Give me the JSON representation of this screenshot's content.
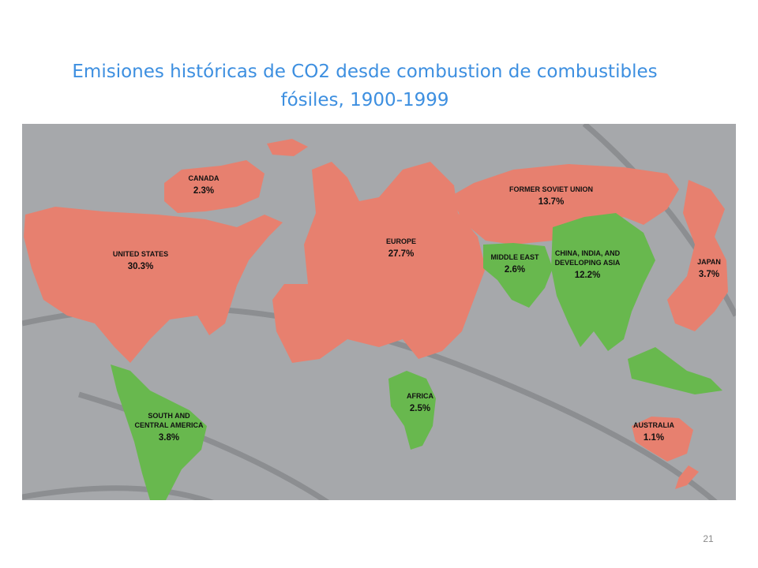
{
  "title": {
    "lines": [
      "Emisiones históricas de CO2 desde combustion de combustibles",
      "fósiles, 1900-1999"
    ]
  },
  "regions": [
    {
      "name": [
        "CANADA"
      ],
      "share": "2.3%"
    },
    {
      "name": [
        "UNITED STATES"
      ],
      "share": "30.3%"
    },
    {
      "name": [
        "EUROPE"
      ],
      "share": "27.7%"
    },
    {
      "name": [
        "FORMER SOVIET UNION"
      ],
      "share": "13.7%"
    },
    {
      "name": [
        "MIDDLE EAST"
      ],
      "share": "2.6%"
    },
    {
      "name": [
        "CHINA, INDIA, AND",
        "DEVELOPING ASIA"
      ],
      "share": "12.2%"
    },
    {
      "name": [
        "JAPAN"
      ],
      "share": "3.7%"
    },
    {
      "name": [
        "SOUTH AND",
        "CENTRAL AMERICA"
      ],
      "share": "3.8%"
    },
    {
      "name": [
        "AFRICA"
      ],
      "share": "2.5%"
    },
    {
      "name": [
        "AUSTRALIA"
      ],
      "share": "1.1%"
    }
  ],
  "slide_number": 21
}
